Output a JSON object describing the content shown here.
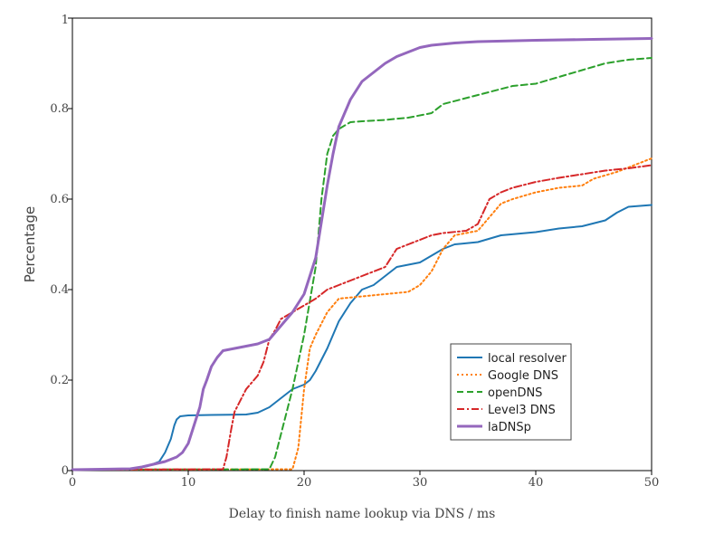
{
  "chart_data": {
    "type": "line",
    "xlabel": "Delay to finish name lookup via DNS / ms",
    "ylabel": "Percentage",
    "xlim": [
      0,
      50
    ],
    "ylim": [
      0,
      1
    ],
    "xticks": [
      0,
      10,
      20,
      30,
      40,
      50
    ],
    "yticks": [
      0,
      0.2,
      0.4,
      0.6,
      0.8,
      1
    ],
    "ytick_labels": [
      "0",
      "0.2",
      "0.4",
      "0.6",
      "0.8",
      "1"
    ],
    "grid": false,
    "legend_position": "bottom-right",
    "series": [
      {
        "name": "local resolver",
        "color": "#1f77b4",
        "dash": "solid",
        "x": [
          0,
          5,
          6.5,
          7.5,
          8,
          8.5,
          8.8,
          9,
          9.3,
          10,
          12,
          15,
          16,
          17,
          18,
          19,
          20,
          20.5,
          21,
          22,
          23,
          24,
          25,
          26,
          27,
          28,
          29,
          30,
          31,
          32,
          33,
          35,
          37,
          40,
          42,
          44,
          46,
          47,
          48,
          50
        ],
        "y": [
          0.002,
          0.004,
          0.01,
          0.02,
          0.04,
          0.07,
          0.1,
          0.113,
          0.12,
          0.122,
          0.123,
          0.124,
          0.128,
          0.14,
          0.16,
          0.18,
          0.19,
          0.2,
          0.22,
          0.27,
          0.33,
          0.37,
          0.4,
          0.41,
          0.43,
          0.45,
          0.455,
          0.46,
          0.475,
          0.49,
          0.5,
          0.505,
          0.52,
          0.527,
          0.535,
          0.54,
          0.553,
          0.57,
          0.583,
          0.587
        ]
      },
      {
        "name": "Google DNS",
        "color": "#ff7f0e",
        "dash": "dot",
        "x": [
          0,
          19,
          19.5,
          20,
          20.5,
          21,
          22,
          23,
          25,
          27,
          29,
          30,
          31,
          32,
          33,
          34,
          35,
          36,
          37,
          38,
          40,
          42,
          44,
          45,
          47,
          48,
          49,
          50
        ],
        "y": [
          0.002,
          0.003,
          0.05,
          0.18,
          0.27,
          0.3,
          0.35,
          0.38,
          0.385,
          0.39,
          0.395,
          0.41,
          0.44,
          0.49,
          0.52,
          0.525,
          0.53,
          0.56,
          0.59,
          0.6,
          0.615,
          0.625,
          0.63,
          0.645,
          0.66,
          0.67,
          0.68,
          0.69
        ]
      },
      {
        "name": "openDNS",
        "color": "#2ca02c",
        "dash": "dash",
        "x": [
          0,
          17,
          17.5,
          18,
          19,
          20,
          21,
          21.5,
          22,
          22.5,
          23,
          24,
          25,
          27,
          29,
          31,
          32,
          35,
          38,
          40,
          42,
          44,
          46,
          48,
          50
        ],
        "y": [
          0.002,
          0.003,
          0.03,
          0.08,
          0.18,
          0.3,
          0.45,
          0.6,
          0.7,
          0.74,
          0.755,
          0.77,
          0.772,
          0.775,
          0.78,
          0.79,
          0.81,
          0.83,
          0.85,
          0.855,
          0.87,
          0.885,
          0.9,
          0.908,
          0.912
        ]
      },
      {
        "name": "Level3 DNS",
        "color": "#d62728",
        "dash": "dashdot",
        "x": [
          0,
          13,
          13.3,
          13.7,
          14,
          15,
          16,
          16.5,
          17,
          17.5,
          18,
          19,
          20,
          21,
          22,
          23,
          24,
          25,
          27,
          28,
          29,
          30,
          31,
          32,
          34,
          35,
          36,
          37,
          38,
          40,
          42,
          44,
          46,
          48,
          50
        ],
        "y": [
          0.002,
          0.003,
          0.03,
          0.09,
          0.13,
          0.18,
          0.21,
          0.24,
          0.29,
          0.31,
          0.335,
          0.35,
          0.365,
          0.38,
          0.4,
          0.41,
          0.42,
          0.43,
          0.45,
          0.49,
          0.5,
          0.51,
          0.52,
          0.525,
          0.53,
          0.545,
          0.6,
          0.615,
          0.625,
          0.638,
          0.647,
          0.655,
          0.663,
          0.668,
          0.675
        ]
      },
      {
        "name": "laDNSp",
        "color": "#9467bd",
        "dash": "solid",
        "x": [
          0,
          5,
          6,
          7,
          8,
          9,
          9.5,
          10,
          10.5,
          11,
          11.3,
          11.6,
          12,
          12.5,
          13,
          14,
          15,
          16,
          17,
          18,
          19,
          20,
          21,
          21.5,
          22,
          22.5,
          23,
          23.5,
          24,
          25,
          26,
          27,
          28,
          29,
          30,
          31,
          33,
          35,
          40,
          45,
          50
        ],
        "y": [
          0.002,
          0.004,
          0.008,
          0.014,
          0.02,
          0.03,
          0.04,
          0.06,
          0.1,
          0.14,
          0.18,
          0.2,
          0.23,
          0.25,
          0.265,
          0.27,
          0.275,
          0.28,
          0.29,
          0.32,
          0.35,
          0.39,
          0.47,
          0.55,
          0.63,
          0.7,
          0.76,
          0.79,
          0.82,
          0.86,
          0.88,
          0.9,
          0.915,
          0.925,
          0.935,
          0.94,
          0.945,
          0.948,
          0.951,
          0.953,
          0.955
        ]
      }
    ]
  }
}
